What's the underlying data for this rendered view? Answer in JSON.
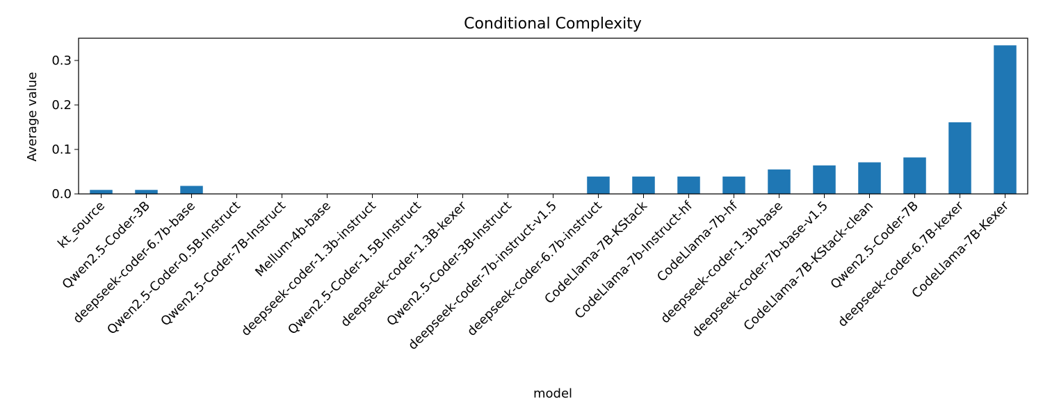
{
  "chart_data": {
    "type": "bar",
    "title": "Conditional Complexity",
    "xlabel": "model",
    "ylabel": "Average value",
    "categories": [
      "kt_source",
      "Qwen2.5-Coder-3B",
      "deepseek-coder-6.7b-base",
      "Qwen2.5-Coder-0.5B-Instruct",
      "Qwen2.5-Coder-7B-Instruct",
      "Mellum-4b-base",
      "deepseek-coder-1.3b-instruct",
      "Qwen2.5-Coder-1.5B-Instruct",
      "deepseek-coder-1.3B-kexer",
      "Qwen2.5-Coder-3B-Instruct",
      "deepseek-coder-7b-instruct-v1.5",
      "deepseek-coder-6.7b-instruct",
      "CodeLlama-7B-KStack",
      "CodeLlama-7b-Instruct-hf",
      "CodeLlama-7b-hf",
      "deepseek-coder-1.3b-base",
      "deepseek-coder-7b-base-v1.5",
      "CodeLlama-7B-KStack-clean",
      "Qwen2.5-Coder-7B",
      "deepseek-coder-6.7B-kexer",
      "CodeLlama-7B-Kexer"
    ],
    "values": [
      0.009,
      0.009,
      0.018,
      0,
      0,
      0,
      0,
      0,
      0,
      0,
      0,
      0.039,
      0.039,
      0.039,
      0.039,
      0.055,
      0.064,
      0.071,
      0.082,
      0.161,
      0.334
    ],
    "ylim": [
      0,
      0.35
    ],
    "yticks": [
      0.0,
      0.1,
      0.2,
      0.3
    ],
    "ytick_labels": [
      "0.0",
      "0.1",
      "0.2",
      "0.3"
    ],
    "grid": false,
    "legend": "none",
    "bar_color": "#1f77b4"
  }
}
